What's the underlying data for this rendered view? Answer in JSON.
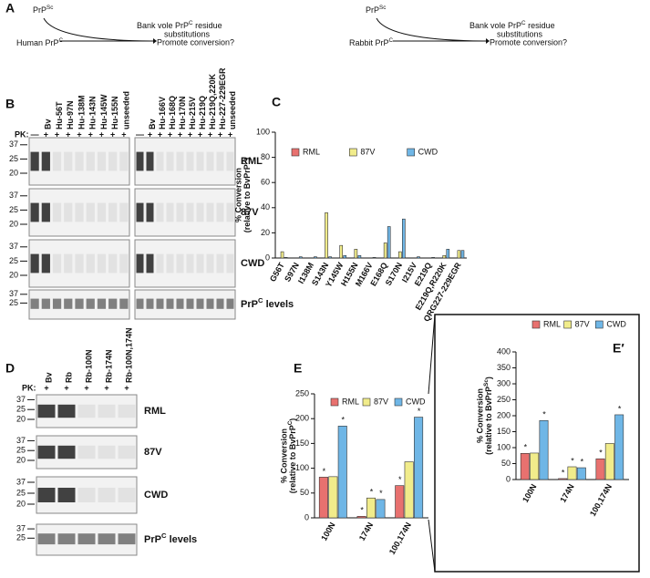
{
  "panel_labels": [
    "A",
    "B",
    "C",
    "D",
    "E",
    "E′"
  ],
  "scheme_a": [
    {
      "seed": [
        "PrP",
        {
          "sup": "Sc"
        }
      ],
      "substitutions": [
        "Bank vole PrP",
        {
          "sup": "C"
        },
        " residue"
      ],
      "substitutions_2": "substitutions",
      "substrate": [
        "Human PrP",
        {
          "sup": "C"
        }
      ],
      "question": "Promote conversion?"
    },
    {
      "seed": [
        "PrP",
        {
          "sup": "Sc"
        }
      ],
      "substitutions": [
        "Bank vole PrP",
        {
          "sup": "C"
        },
        " residue"
      ],
      "substitutions_2": "substitutions",
      "substrate": [
        "Rabbit PrP",
        {
          "sup": "C"
        }
      ],
      "question": "Promote conversion?"
    }
  ],
  "blots_b": {
    "pk_label": "PK:",
    "groups": [
      {
        "pk": [
          "—",
          "+",
          "+",
          "+",
          "+",
          "+",
          "+",
          "+",
          "+"
        ],
        "lanes": [
          null,
          "Bv",
          "Hu-56T",
          "Hu-97N",
          "Hu-138M",
          "Hu-143N",
          "Hu-145W",
          "Hu-155N",
          "unseeded"
        ]
      },
      {
        "pk": [
          "—",
          "+",
          "+",
          "+",
          "+",
          "+",
          "+",
          "+",
          "+",
          "+"
        ],
        "lanes": [
          null,
          "Bv",
          "Hu-166V",
          "Hu-168Q",
          "Hu-170N",
          "Hu-215V",
          "Hu-219Q",
          "Hu-219Q,220K",
          "Hu-227-229EGR",
          "unseeded"
        ]
      }
    ],
    "strains": [
      "RML",
      "87V",
      "CWD"
    ],
    "levels": [
      "PrP",
      {
        "sup": "C"
      },
      " levels"
    ],
    "markers": [
      "37",
      "25",
      "20"
    ]
  },
  "blots_d": {
    "pk_label": "PK:",
    "groups": [
      {
        "pk": [
          "+",
          "+",
          "+",
          "+",
          "+"
        ],
        "lanes": [
          "Bv",
          "Rb",
          "Rb-100N",
          "Rb-174N",
          "Rb-100N,174N"
        ]
      }
    ],
    "strains": [
      "RML",
      "87V",
      "CWD"
    ],
    "levels": [
      "PrP",
      {
        "sup": "C"
      },
      " levels"
    ],
    "markers": [
      "37",
      "25",
      "20"
    ]
  },
  "chart_data": [
    {
      "type": "bar",
      "ylabel": "% Conversion",
      "ylabel_2": [
        "(relative to BvPrP",
        {
          "sup": "C"
        },
        ")"
      ],
      "categories": [
        "G56T",
        "S97N",
        "I138M",
        "S143N",
        "Y145W",
        "H155N",
        "M166V",
        "E168Q",
        "S170N",
        "I215V",
        "E219Q",
        "E219Q,R220K",
        "QRG227-229EGR"
      ],
      "series": [
        {
          "name": "RML",
          "color": "#e8716f",
          "values": [
            0,
            0,
            0,
            0,
            0,
            0,
            0,
            0,
            0,
            0,
            0,
            0,
            0
          ]
        },
        {
          "name": "87V",
          "color": "#f1ec8b",
          "values": [
            5,
            0,
            0,
            36,
            10,
            7,
            0,
            12,
            5,
            0,
            0,
            2,
            6
          ]
        },
        {
          "name": "CWD",
          "color": "#6fb6e6",
          "values": [
            0.5,
            1,
            1,
            1,
            2,
            2,
            0.5,
            25,
            31,
            1,
            0.5,
            7,
            6
          ]
        }
      ],
      "ylim": [
        0,
        100
      ],
      "yticks": [
        0,
        20,
        40,
        60,
        80,
        100
      ]
    },
    {
      "type": "bar",
      "ylabel": "% Conversion",
      "ylabel_2": [
        "(relative to BvPrP",
        {
          "sup": "C"
        },
        ")"
      ],
      "categories": [
        "100N",
        "174N",
        "100,174N"
      ],
      "series": [
        {
          "name": "RML",
          "color": "#e8716f",
          "values": [
            82,
            3,
            65
          ],
          "significance": [
            "*",
            "*",
            "*"
          ]
        },
        {
          "name": "87V",
          "color": "#f1ec8b",
          "values": [
            83,
            40,
            113
          ],
          "significance": [
            null,
            "*",
            null
          ]
        },
        {
          "name": "CWD",
          "color": "#6fb6e6",
          "values": [
            185,
            37,
            203
          ],
          "significance": [
            "*",
            "*",
            "*"
          ]
        }
      ],
      "ylim": [
        0,
        250
      ],
      "yticks": [
        0,
        50,
        100,
        150,
        200,
        250
      ]
    },
    {
      "type": "bar",
      "ylabel": "% Conversion",
      "ylabel_2": [
        "(relative to BvPrP",
        {
          "sup": "Sc"
        },
        ")"
      ],
      "categories": [
        "100N",
        "174N",
        "100,174N"
      ],
      "series": [
        {
          "name": "RML",
          "color": "#e8716f",
          "values": [
            82,
            3,
            65
          ],
          "significance": [
            "*",
            "*",
            "*"
          ]
        },
        {
          "name": "87V",
          "color": "#f1ec8b",
          "values": [
            83,
            40,
            113
          ],
          "significance": [
            null,
            "*",
            null
          ]
        },
        {
          "name": "CWD",
          "color": "#6fb6e6",
          "values": [
            185,
            37,
            203
          ],
          "significance": [
            "*",
            "*",
            "*"
          ]
        }
      ],
      "ylim": [
        0,
        400
      ],
      "yticks": [
        0,
        50,
        100,
        150,
        200,
        250,
        300,
        350,
        400
      ]
    }
  ]
}
